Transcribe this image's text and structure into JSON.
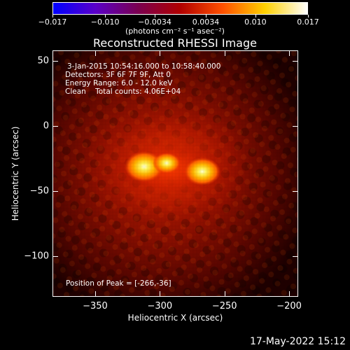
{
  "colorbar": {
    "ticks": [
      "−0.017",
      "−0.010",
      "−0.0034",
      "0.0034",
      "0.010",
      "0.017"
    ],
    "unit_label": "(photons cm⁻² s⁻¹ asec⁻²)",
    "colors": [
      "#0000ff",
      "#5a00c8",
      "#7a0050",
      "#b00000",
      "#ff5000",
      "#ffd000",
      "#ffffff"
    ]
  },
  "title": "Reconstructed RHESSI Image",
  "annotations": {
    "time_range": "3-Jan-2015 10:54:16.000 to 10:58:40.000",
    "detectors": "Detectors: 3F 6F 7F 9F, Att 0",
    "energy": "Energy Range: 6.0 - 12.0 keV",
    "clean": "Clean    Total counts: 4.06E+04",
    "peak": "Position of Peak = [-266,-36]"
  },
  "axes": {
    "xlabel": "Heliocentric X (arcsec)",
    "ylabel": "Heliocentric Y (arcsec)",
    "xticks": [
      "−350",
      "−300",
      "−250",
      "−200"
    ],
    "yticks": [
      "50",
      "0",
      "−50",
      "−100"
    ],
    "xlim": [
      -383,
      -193
    ],
    "ylim": [
      -131,
      58
    ]
  },
  "footer": {
    "date": "17-May-2022 15:12"
  }
}
